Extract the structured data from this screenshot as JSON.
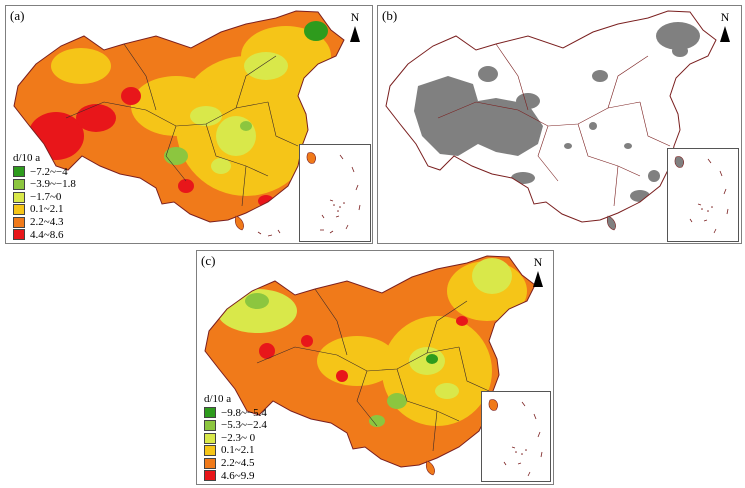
{
  "north_symbol": "N",
  "legend_unit": "d/10 a",
  "colors": {
    "class1": "#2e9b1d",
    "class2": "#8cc63f",
    "class3": "#d9e84a",
    "class4": "#f5c518",
    "class5": "#f07a1a",
    "class6": "#e8161a",
    "border": "#7a1f1f",
    "significant": "#808080"
  },
  "panels": [
    {
      "label": "(a)",
      "legend": [
        "−7.2~−4",
        "−3.9~−1.8",
        "−1.7~0",
        "0.1~2.1",
        "2.2~4.3",
        "4.4~8.6"
      ]
    },
    {
      "label": "(b)",
      "legend": []
    },
    {
      "label": "(c)",
      "legend": [
        "−9.8~−5.4",
        "−5.3~−2.4",
        "−2.3~ 0",
        "0.1~2.1",
        "2.2~4.5",
        "4.6~9.9"
      ]
    }
  ]
}
